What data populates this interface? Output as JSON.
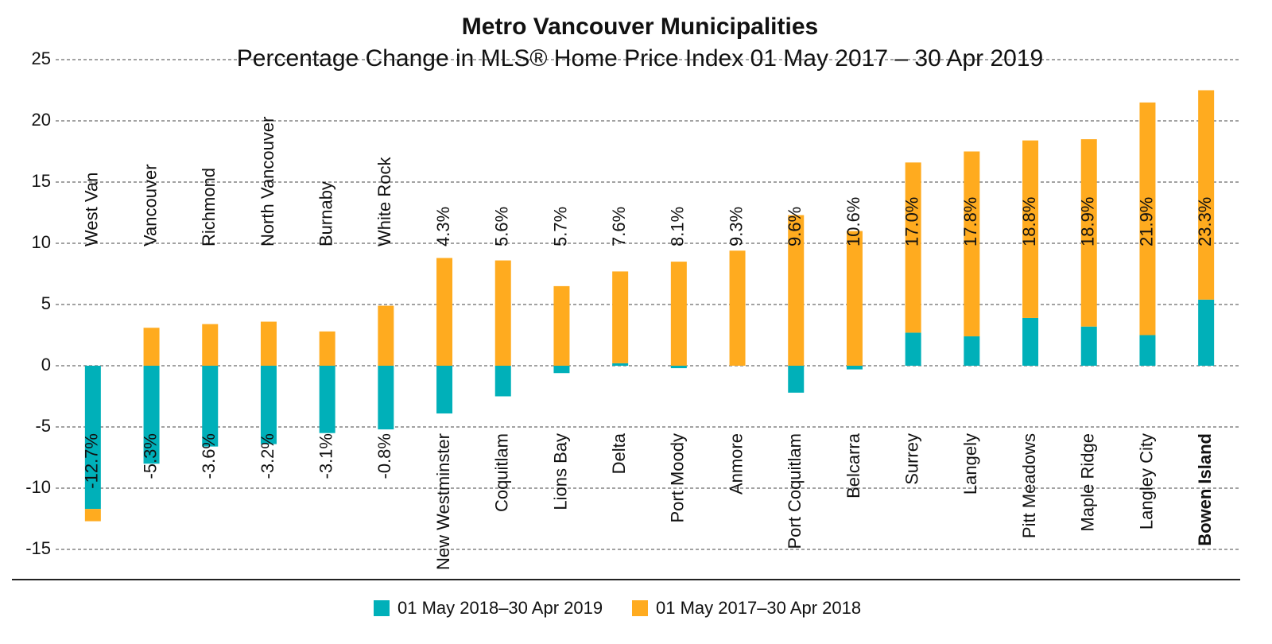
{
  "chart_data": {
    "type": "bar",
    "stacked": true,
    "title": "Metro Vancouver Municipalities",
    "subtitle": "Percentage Change in MLS® Home Price Index   01 May 2017 – 30 Apr 2019",
    "categories": [
      "West Van",
      "Vancouver",
      "Richmond",
      "North Vancouver",
      "Burnaby",
      "White Rock",
      "New Westminster",
      "Coquitlam",
      "Lions Bay",
      "Delta",
      "Port Moody",
      "Anmore",
      "Port Coquitlam",
      "Belcarra",
      "Surrey",
      "Langely",
      "Pitt Meadows",
      "Maple Ridge",
      "Langley City",
      "Bowen Island"
    ],
    "series": [
      {
        "name": "01 May 2018–30 Apr 2019",
        "color": "#00b0b9",
        "values": [
          -11.7,
          -8.0,
          -6.6,
          -6.4,
          -5.5,
          -5.2,
          -3.9,
          -2.5,
          -0.6,
          0.2,
          -0.2,
          0,
          -2.2,
          -0.3,
          2.7,
          2.4,
          3.9,
          3.2,
          2.5,
          5.4
        ]
      },
      {
        "name": "01 May 2017–30 Apr 2018",
        "color": "#ffab1f",
        "values": [
          -1.0,
          3.1,
          3.4,
          3.6,
          2.8,
          4.9,
          8.8,
          8.6,
          6.5,
          7.5,
          8.5,
          9.4,
          12.3,
          11.0,
          13.9,
          15.1,
          14.5,
          15.3,
          19.0,
          17.1
        ]
      }
    ],
    "total_change": {
      "values": [
        -12.7,
        -5.3,
        -3.6,
        -3.2,
        -3.1,
        -0.8,
        4.3,
        5.6,
        5.7,
        7.6,
        8.1,
        9.3,
        9.6,
        10.6,
        17.0,
        17.8,
        18.8,
        18.9,
        21.9,
        23.3
      ],
      "value_labels": [
        "-12.7%",
        "-5.3%",
        "-3.6%",
        "-3.2%",
        "-3.1%",
        "-0.8%",
        "4.3%",
        "5.6%",
        "5.7%",
        "7.6%",
        "8.1%",
        "9.3%",
        "9.6%",
        "10.6%",
        "17.0%",
        "17.8%",
        "18.8%",
        "18.9%",
        "21.9%",
        "23.3%"
      ]
    },
    "ylim": [
      -15,
      25
    ],
    "yticks": [
      -15,
      -10,
      -5,
      0,
      5,
      10,
      15,
      20,
      25
    ],
    "grid": true,
    "legend": "bottom"
  }
}
